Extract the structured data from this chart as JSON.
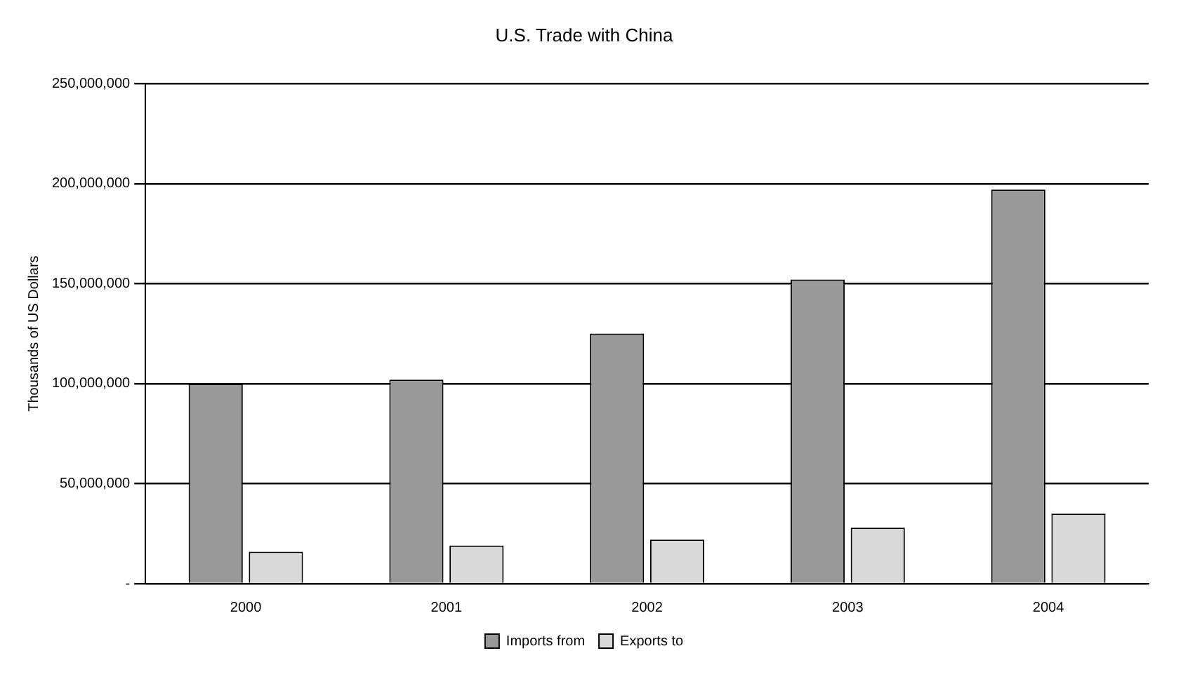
{
  "chart_data": {
    "type": "bar",
    "title": "U.S. Trade with China",
    "ylabel": "Thousands of US Dollars",
    "categories": [
      "2000",
      "2001",
      "2002",
      "2003",
      "2004"
    ],
    "series": [
      {
        "name": "Imports from",
        "color": "#999999",
        "values": [
          100000000,
          102000000,
          125000000,
          152000000,
          197000000
        ]
      },
      {
        "name": "Exports to",
        "color": "#d9d9d9",
        "values": [
          16000000,
          19000000,
          22000000,
          28000000,
          35000000
        ]
      }
    ],
    "ylim": [
      0,
      250000000
    ],
    "yticks": [
      {
        "value": 0,
        "label": "-"
      },
      {
        "value": 50000000,
        "label": "50,000,000"
      },
      {
        "value": 100000000,
        "label": "100,000,000"
      },
      {
        "value": 150000000,
        "label": "150,000,000"
      },
      {
        "value": 200000000,
        "label": "200,000,000"
      },
      {
        "value": 250000000,
        "label": "250,000,000"
      }
    ],
    "grid": "y",
    "legend": "bottom"
  }
}
